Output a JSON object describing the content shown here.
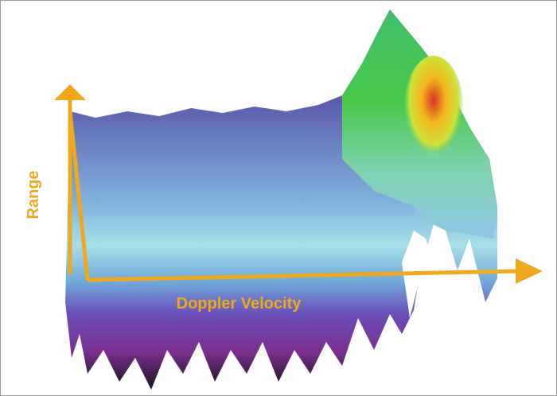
{
  "figure": {
    "y_axis_label": "Range",
    "x_axis_label": "Doppler Velocity"
  }
}
